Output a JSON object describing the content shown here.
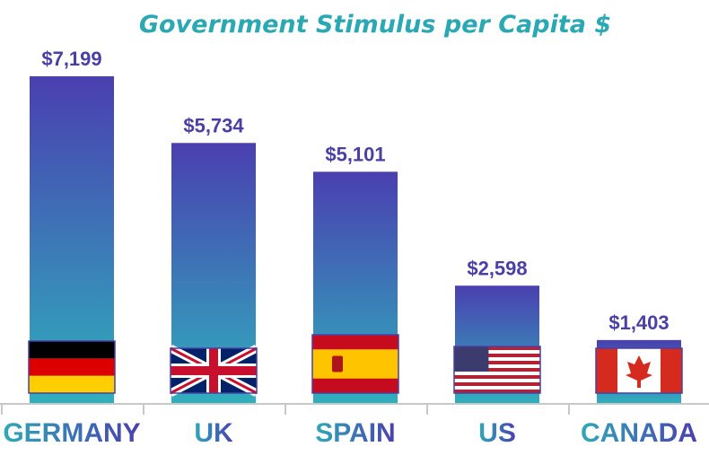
{
  "chart_data": {
    "type": "bar",
    "title": "Government Stimulus per Capita $",
    "categories": [
      "GERMANY",
      "UK",
      "SPAIN",
      "US",
      "CANADA"
    ],
    "values": [
      7199,
      5734,
      5101,
      2598,
      1403
    ],
    "value_labels": [
      "$7,199",
      "$5,734",
      "$5,101",
      "$2,598",
      "$1,403"
    ],
    "flags": [
      "germany-flag",
      "uk-flag",
      "spain-flag",
      "us-flag",
      "canada-flag"
    ],
    "xlabel": "",
    "ylabel": "",
    "ylim": [
      0,
      7199
    ],
    "grid": false,
    "colors": {
      "bar_top": "#4a3fb0",
      "bar_bottom": "#2fb0bd",
      "title": "#2aa8b3",
      "value_label": "#4a3fa6",
      "axis": "#c8c8c8"
    }
  }
}
